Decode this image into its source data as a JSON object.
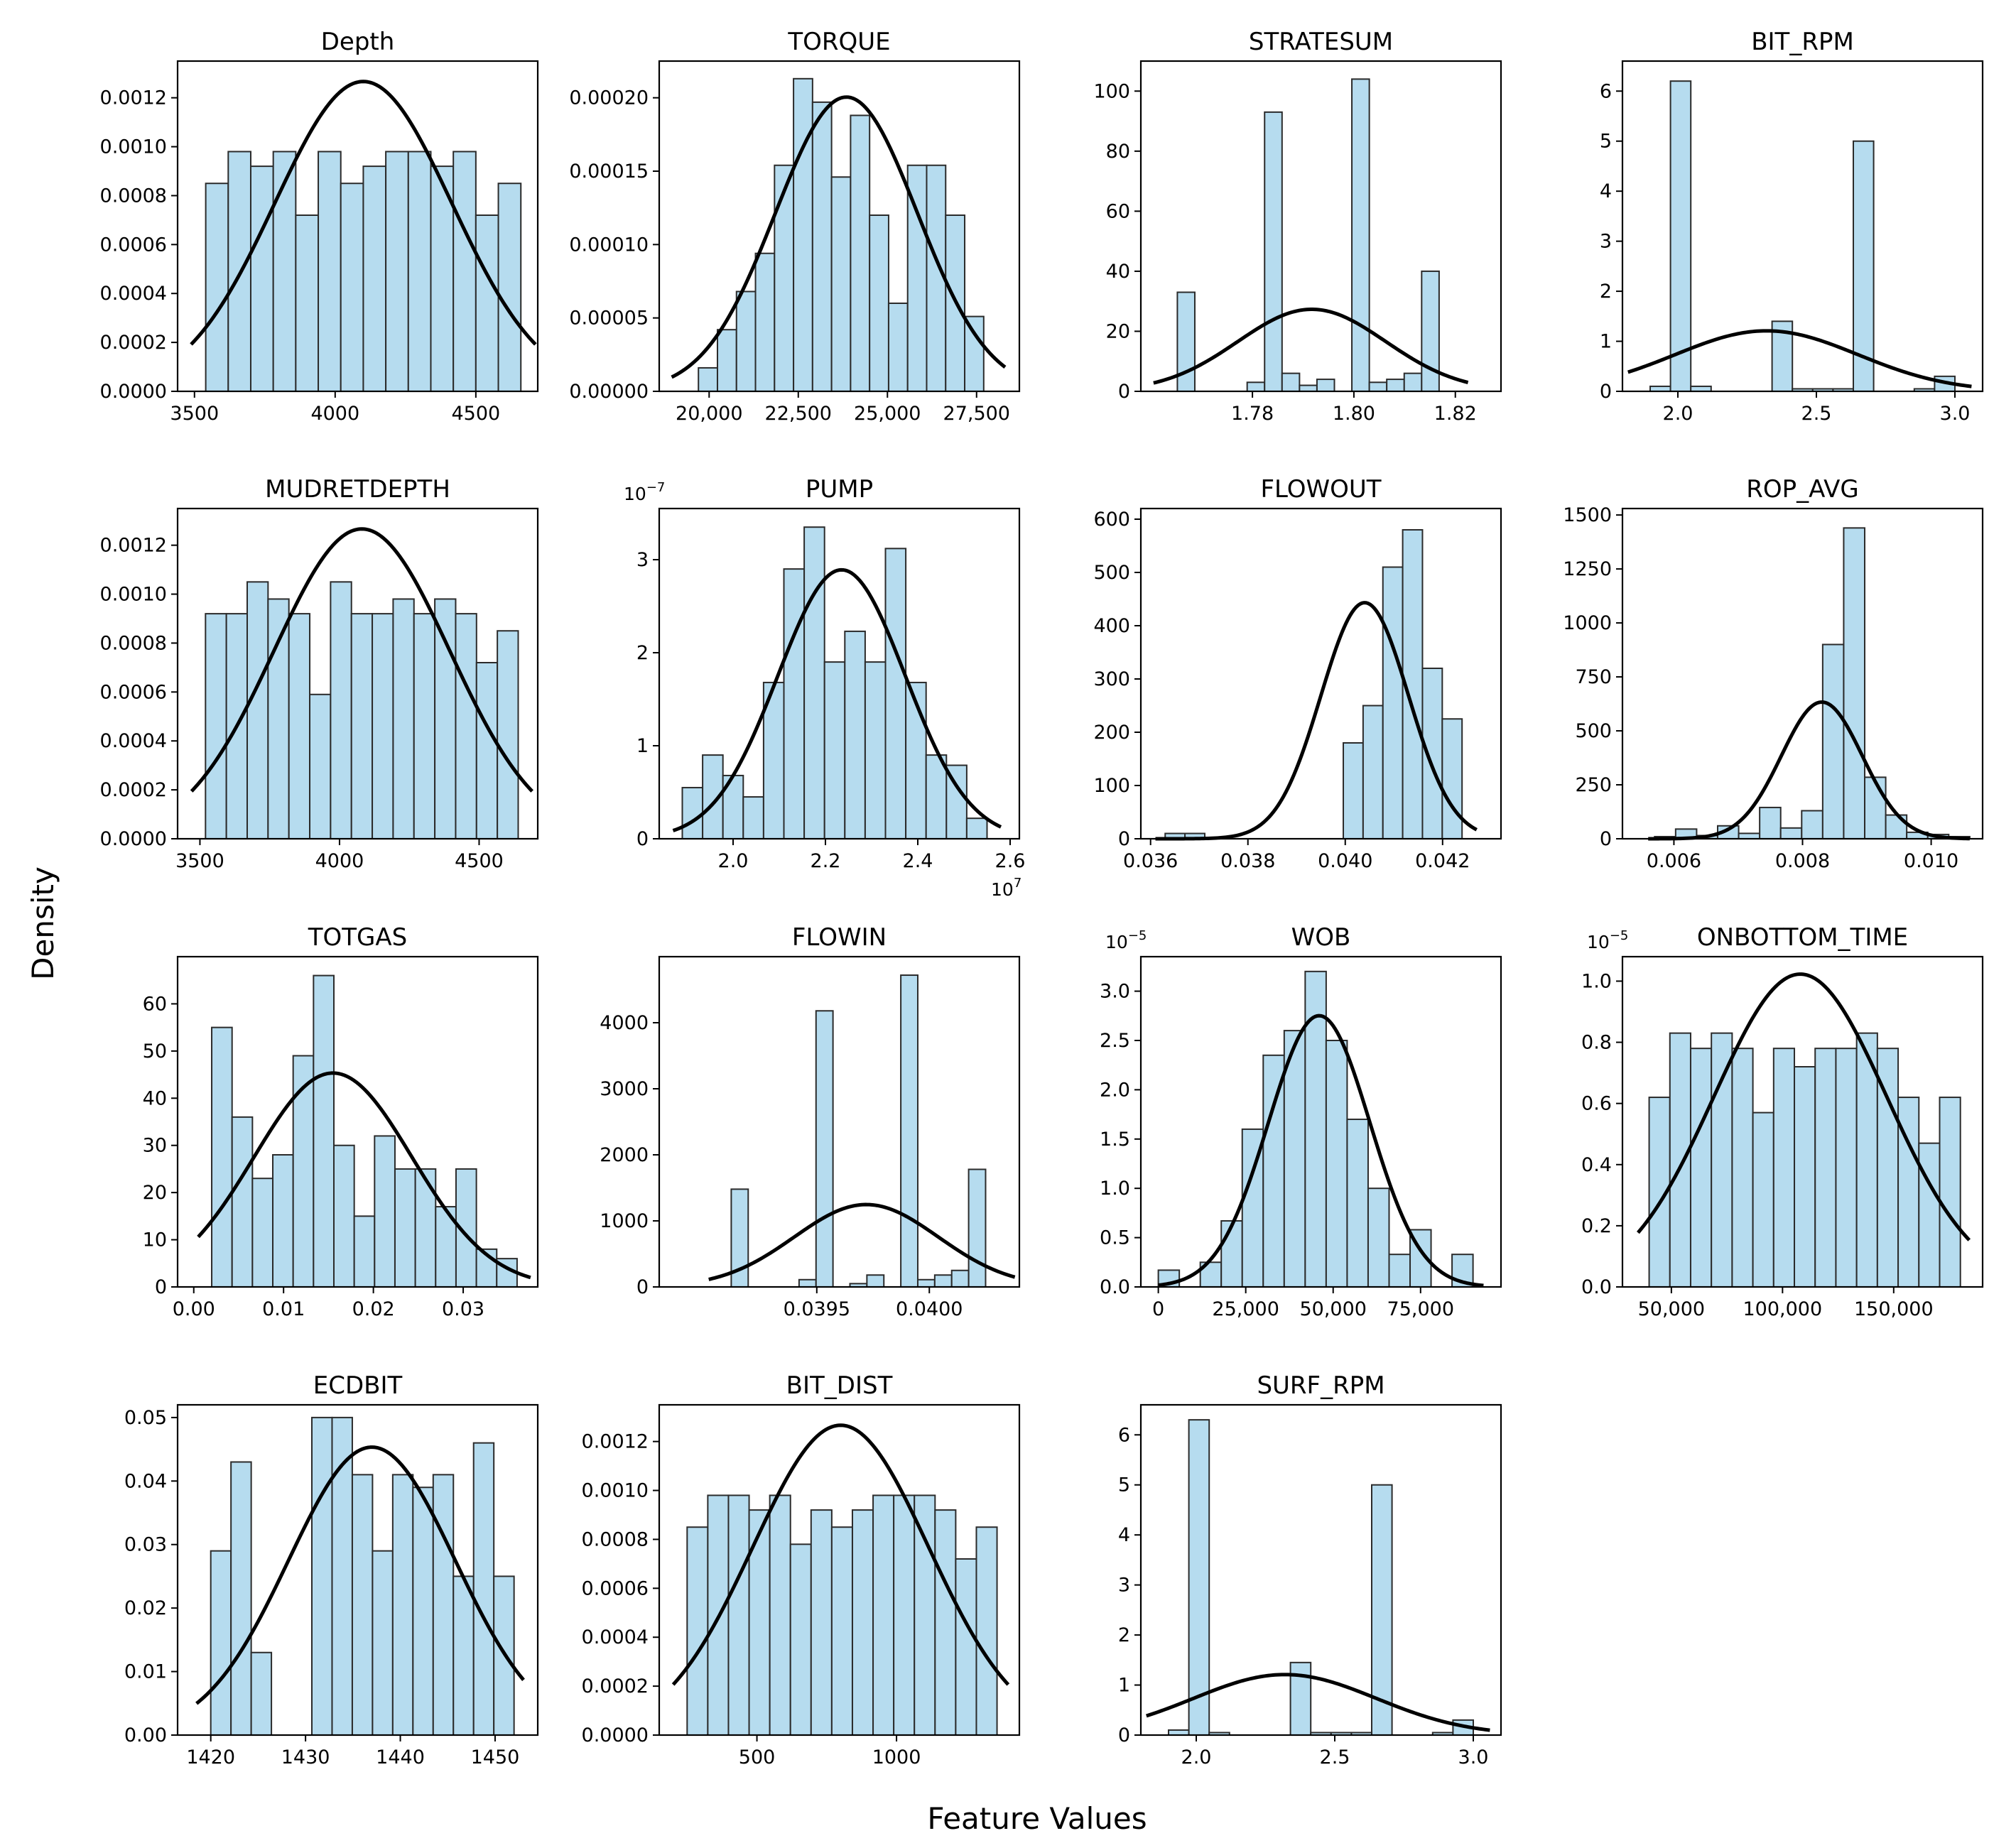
{
  "figure": {
    "xlabel": "Feature Values",
    "ylabel": "Density",
    "bar_color": "#b6dcef",
    "bar_edge_color": "#2b2b2b",
    "curve_color": "#000000"
  },
  "chart_data": [
    {
      "type": "bar",
      "title": "Depth",
      "bin_range": [
        3540,
        4660
      ],
      "values": [
        0.00085,
        0.00098,
        0.00092,
        0.00098,
        0.00072,
        0.00098,
        0.00085,
        0.00092,
        0.00098,
        0.00098,
        0.00092,
        0.00098,
        0.00072,
        0.00085
      ],
      "normal_fit": {
        "mean": 4100,
        "std": 315,
        "x_range": [
          3488,
          4712
        ]
      },
      "xlim": [
        3440,
        4720
      ],
      "ylim": [
        0,
        0.00135
      ],
      "xticks": [
        3500,
        4000,
        4500
      ],
      "xtick_labels": [
        "3500",
        "4000",
        "4500"
      ],
      "yticks": [
        0,
        0.0002,
        0.0004,
        0.0006,
        0.0008,
        0.001,
        0.0012
      ],
      "ytick_labels": [
        "0.0000",
        "0.0002",
        "0.0004",
        "0.0006",
        "0.0008",
        "0.0010",
        "0.0012"
      ],
      "offset_text": ""
    },
    {
      "type": "bar",
      "title": "TORQUE",
      "bin_range": [
        19700,
        27700
      ],
      "values": [
        1.6e-05,
        4.2e-05,
        6.8e-05,
        9.4e-05,
        0.000154,
        0.000213,
        0.000197,
        0.000146,
        0.000188,
        0.00012,
        6e-05,
        0.000154,
        0.000154,
        0.00012,
        5.1e-05
      ],
      "normal_fit": {
        "mean": 23850,
        "std": 1990,
        "x_range": [
          18950,
          28300
        ]
      },
      "xlim": [
        18600,
        28700
      ],
      "ylim": [
        0,
        0.000225
      ],
      "xticks": [
        20000,
        22500,
        25000,
        27500
      ],
      "xtick_labels": [
        "20,000",
        "22,500",
        "25,000",
        "27,500"
      ],
      "yticks": [
        0,
        5e-05,
        0.0001,
        0.00015,
        0.0002
      ],
      "ytick_labels": [
        "0.00000",
        "0.00005",
        "0.00010",
        "0.00015",
        "0.00020"
      ],
      "offset_text": ""
    },
    {
      "type": "bar",
      "title": "STRATESUM",
      "bin_range": [
        1.7652,
        1.8168
      ],
      "values": [
        33,
        0,
        0,
        0,
        3,
        93,
        6,
        2,
        4,
        0,
        104,
        3,
        4,
        6,
        40
      ],
      "normal_fit": {
        "mean": 1.7917,
        "std": 0.0146,
        "x_range": [
          1.7605,
          1.8225
        ]
      },
      "xlim": [
        1.758,
        1.829
      ],
      "ylim": [
        0,
        110
      ],
      "xticks": [
        1.78,
        1.8,
        1.82
      ],
      "xtick_labels": [
        "1.78",
        "1.80",
        "1.82"
      ],
      "yticks": [
        0,
        20,
        40,
        60,
        80,
        100
      ],
      "ytick_labels": [
        "0",
        "20",
        "40",
        "60",
        "80",
        "100"
      ],
      "offset_text": ""
    },
    {
      "type": "bar",
      "title": "BIT_RPM",
      "bin_range": [
        1.9,
        3.0
      ],
      "values": [
        0.1,
        6.2,
        0.1,
        0,
        0,
        0,
        1.4,
        0.05,
        0.05,
        0.05,
        5.0,
        0,
        0,
        0.05,
        0.3
      ],
      "normal_fit": {
        "mean": 2.32,
        "std": 0.33,
        "x_range": [
          1.82,
          3.06
        ]
      },
      "xlim": [
        1.8,
        3.1
      ],
      "ylim": [
        0,
        6.6
      ],
      "xticks": [
        2.0,
        2.5,
        3.0
      ],
      "xtick_labels": [
        "2.0",
        "2.5",
        "3.0"
      ],
      "yticks": [
        0,
        1,
        2,
        3,
        4,
        5,
        6
      ],
      "ytick_labels": [
        "0",
        "1",
        "2",
        "3",
        "4",
        "5",
        "6"
      ],
      "offset_text": ""
    },
    {
      "type": "bar",
      "title": "MUDRETDEPTH",
      "bin_range": [
        3520,
        4640
      ],
      "values": [
        0.00092,
        0.00092,
        0.00105,
        0.00098,
        0.00092,
        0.00059,
        0.00105,
        0.00092,
        0.00092,
        0.00098,
        0.00092,
        0.00098,
        0.00092,
        0.00072,
        0.00085
      ],
      "normal_fit": {
        "mean": 4080,
        "std": 315,
        "x_range": [
          3470,
          4690
        ]
      },
      "xlim": [
        3420,
        4710
      ],
      "ylim": [
        0,
        0.00135
      ],
      "xticks": [
        3500,
        4000,
        4500
      ],
      "xtick_labels": [
        "3500",
        "4000",
        "4500"
      ],
      "yticks": [
        0,
        0.0002,
        0.0004,
        0.0006,
        0.0008,
        0.001,
        0.0012
      ],
      "ytick_labels": [
        "0.0000",
        "0.0002",
        "0.0004",
        "0.0006",
        "0.0008",
        "0.0010",
        "0.0012"
      ],
      "offset_text": ""
    },
    {
      "type": "bar",
      "title": "PUMP",
      "bin_range": [
        18900000,
        25500000
      ],
      "values": [
        0.55,
        0.9,
        0.68,
        0.45,
        1.68,
        2.9,
        3.35,
        1.9,
        2.23,
        1.9,
        3.12,
        1.68,
        0.9,
        0.79,
        0.22
      ],
      "normal_fit": {
        "mean": 22350000,
        "std": 1380000,
        "x_range": [
          18700000,
          25800000
        ]
      },
      "xlim": [
        18400000,
        26200000
      ],
      "ylim": [
        0,
        3.55
      ],
      "xticks": [
        20000000,
        22000000,
        24000000,
        26000000
      ],
      "xtick_labels": [
        "2.0",
        "2.2",
        "2.4",
        "2.6"
      ],
      "yticks": [
        0,
        1,
        2,
        3
      ],
      "ytick_labels": [
        "0",
        "1",
        "2",
        "3"
      ],
      "offset_text": "1e7",
      "y_offset_text": "1e−7"
    },
    {
      "type": "bar",
      "title": "FLOWOUT",
      "bin_range": [
        0.0363,
        0.0424
      ],
      "values": [
        10,
        10,
        0,
        0,
        0,
        0,
        0,
        0,
        0,
        180,
        250,
        510,
        580,
        320,
        225
      ],
      "normal_fit": {
        "mean": 0.0404,
        "std": 0.0009,
        "x_range": [
          0.0361,
          0.0427
        ]
      },
      "xlim": [
        0.0358,
        0.0432
      ],
      "ylim": [
        0,
        620
      ],
      "xticks": [
        0.036,
        0.038,
        0.04,
        0.042
      ],
      "xtick_labels": [
        "0.036",
        "0.038",
        "0.040",
        "0.042"
      ],
      "yticks": [
        0,
        100,
        200,
        300,
        400,
        500,
        600
      ],
      "ytick_labels": [
        "0",
        "100",
        "200",
        "300",
        "400",
        "500",
        "600"
      ],
      "offset_text": ""
    },
    {
      "type": "bar",
      "title": "ROP_AVG",
      "bin_range": [
        0.0057,
        0.0106
      ],
      "values": [
        10,
        45,
        15,
        60,
        25,
        145,
        50,
        130,
        900,
        1440,
        285,
        110,
        30,
        20,
        10
      ],
      "normal_fit": {
        "mean": 0.0083,
        "std": 0.00063,
        "x_range": [
          0.0056,
          0.0106
        ]
      },
      "xlim": [
        0.0052,
        0.0108
      ],
      "ylim": [
        0,
        1530
      ],
      "xticks": [
        0.006,
        0.008,
        0.01
      ],
      "xtick_labels": [
        "0.006",
        "0.008",
        "0.010"
      ],
      "yticks": [
        0,
        250,
        500,
        750,
        1000,
        1250,
        1500
      ],
      "ytick_labels": [
        "0",
        "250",
        "500",
        "750",
        "1000",
        "1250",
        "1500"
      ],
      "offset_text": ""
    },
    {
      "type": "bar",
      "title": "TOTGAS",
      "bin_range": [
        0.002,
        0.036
      ],
      "values": [
        55,
        36,
        23,
        28,
        49,
        66,
        30,
        15,
        32,
        25,
        25,
        17,
        25,
        8,
        6
      ],
      "normal_fit": {
        "mean": 0.0155,
        "std": 0.0088,
        "x_range": [
          0.0005,
          0.0375
        ]
      },
      "xlim": [
        -0.0018,
        0.0383
      ],
      "ylim": [
        0,
        70
      ],
      "xticks": [
        0.0,
        0.01,
        0.02,
        0.03
      ],
      "xtick_labels": [
        "0.00",
        "0.01",
        "0.02",
        "0.03"
      ],
      "yticks": [
        0,
        10,
        20,
        30,
        40,
        50,
        60
      ],
      "ytick_labels": [
        "0",
        "10",
        "20",
        "30",
        "40",
        "50",
        "60"
      ],
      "offset_text": ""
    },
    {
      "type": "bar",
      "title": "FLOWIN",
      "bin_range": [
        0.03912,
        0.04025
      ],
      "values": [
        1480,
        0,
        0,
        0,
        110,
        4180,
        0,
        50,
        180,
        0,
        4720,
        110,
        180,
        250,
        1780
      ],
      "normal_fit": {
        "mean": 0.03972,
        "std": 0.00032,
        "x_range": [
          0.03902,
          0.04038
        ]
      },
      "xlim": [
        0.0388,
        0.0404
      ],
      "ylim": [
        0,
        5000
      ],
      "xticks": [
        0.0395,
        0.04
      ],
      "xtick_labels": [
        "0.0395",
        "0.0400"
      ],
      "yticks": [
        0,
        1000,
        2000,
        3000,
        4000
      ],
      "ytick_labels": [
        "0",
        "1000",
        "2000",
        "3000",
        "4000"
      ],
      "offset_text": ""
    },
    {
      "type": "bar",
      "title": "WOB",
      "bin_range": [
        0,
        90000
      ],
      "values": [
        0.17,
        0,
        0.25,
        0.67,
        1.6,
        2.35,
        2.6,
        3.2,
        2.5,
        1.7,
        1.0,
        0.33,
        0.58,
        0,
        0.33
      ],
      "normal_fit": {
        "mean": 46000,
        "std": 14500,
        "x_range": [
          0,
          93000
        ]
      },
      "xlim": [
        -5000,
        98000
      ],
      "ylim": [
        0,
        3.35
      ],
      "xticks": [
        0,
        25000,
        50000,
        75000
      ],
      "xtick_labels": [
        "0",
        "25,000",
        "50,000",
        "75,000"
      ],
      "yticks": [
        0,
        0.5,
        1.0,
        1.5,
        2.0,
        2.5,
        3.0
      ],
      "ytick_labels": [
        "0.0",
        "0.5",
        "1.0",
        "1.5",
        "2.0",
        "2.5",
        "3.0"
      ],
      "offset_text": "",
      "y_offset_text": "1e−5"
    },
    {
      "type": "bar",
      "title": "ONBOTTOM_TIME",
      "bin_range": [
        40000,
        180000
      ],
      "values": [
        0.62,
        0.83,
        0.78,
        0.83,
        0.78,
        0.57,
        0.78,
        0.72,
        0.78,
        0.78,
        0.83,
        0.78,
        0.62,
        0.47,
        0.62
      ],
      "normal_fit": {
        "mean": 108000,
        "std": 39000,
        "x_range": [
          35000,
          184000
        ]
      },
      "xlim": [
        28000,
        190000
      ],
      "ylim": [
        0,
        1.08
      ],
      "xticks": [
        50000,
        100000,
        150000
      ],
      "xtick_labels": [
        "50,000",
        "100,000",
        "150,000"
      ],
      "yticks": [
        0,
        0.2,
        0.4,
        0.6,
        0.8,
        1.0
      ],
      "ytick_labels": [
        "0.0",
        "0.2",
        "0.4",
        "0.6",
        "0.8",
        "1.0"
      ],
      "offset_text": "",
      "y_offset_text": "1e−5"
    },
    {
      "type": "bar",
      "title": "ECDBIT",
      "bin_range": [
        1420,
        1452
      ],
      "values": [
        0.029,
        0.043,
        0.013,
        0,
        0,
        0.05,
        0.05,
        0.041,
        0.029,
        0.041,
        0.039,
        0.041,
        0.025,
        0.046,
        0.025
      ],
      "normal_fit": {
        "mean": 1437,
        "std": 8.8,
        "x_range": [
          1418.5,
          1453
        ]
      },
      "xlim": [
        1416.5,
        1454.5
      ],
      "ylim": [
        0,
        0.052
      ],
      "xticks": [
        1420,
        1430,
        1440,
        1450
      ],
      "xtick_labels": [
        "1420",
        "1430",
        "1440",
        "1450"
      ],
      "yticks": [
        0,
        0.01,
        0.02,
        0.03,
        0.04,
        0.05
      ],
      "ytick_labels": [
        "0.00",
        "0.01",
        "0.02",
        "0.03",
        "0.04",
        "0.05"
      ],
      "offset_text": ""
    },
    {
      "type": "bar",
      "title": "BIT_DIST",
      "bin_range": [
        250,
        1360
      ],
      "values": [
        0.00085,
        0.00098,
        0.00098,
        0.00092,
        0.00098,
        0.00078,
        0.00092,
        0.00085,
        0.00092,
        0.00098,
        0.00098,
        0.00098,
        0.00092,
        0.00072,
        0.00085
      ],
      "normal_fit": {
        "mean": 800,
        "std": 315,
        "x_range": [
          200,
          1400
        ]
      },
      "xlim": [
        150,
        1440
      ],
      "ylim": [
        0,
        0.00135
      ],
      "xticks": [
        500,
        1000
      ],
      "xtick_labels": [
        "500",
        "1000"
      ],
      "yticks": [
        0,
        0.0002,
        0.0004,
        0.0006,
        0.0008,
        0.001,
        0.0012
      ],
      "ytick_labels": [
        "0.0000",
        "0.0002",
        "0.0004",
        "0.0006",
        "0.0008",
        "0.0010",
        "0.0012"
      ],
      "offset_text": ""
    },
    {
      "type": "bar",
      "title": "SURF_RPM",
      "bin_range": [
        1.9,
        3.0
      ],
      "values": [
        0.1,
        6.3,
        0.05,
        0,
        0,
        0,
        1.45,
        0.05,
        0.05,
        0.05,
        5.0,
        0,
        0,
        0.05,
        0.3
      ],
      "normal_fit": {
        "mean": 2.32,
        "std": 0.33,
        "x_range": [
          1.82,
          3.06
        ]
      },
      "xlim": [
        1.8,
        3.1
      ],
      "ylim": [
        0,
        6.6
      ],
      "xticks": [
        2.0,
        2.5,
        3.0
      ],
      "xtick_labels": [
        "2.0",
        "2.5",
        "3.0"
      ],
      "yticks": [
        0,
        1,
        2,
        3,
        4,
        5,
        6
      ],
      "ytick_labels": [
        "0",
        "1",
        "2",
        "3",
        "4",
        "5",
        "6"
      ],
      "offset_text": ""
    }
  ]
}
